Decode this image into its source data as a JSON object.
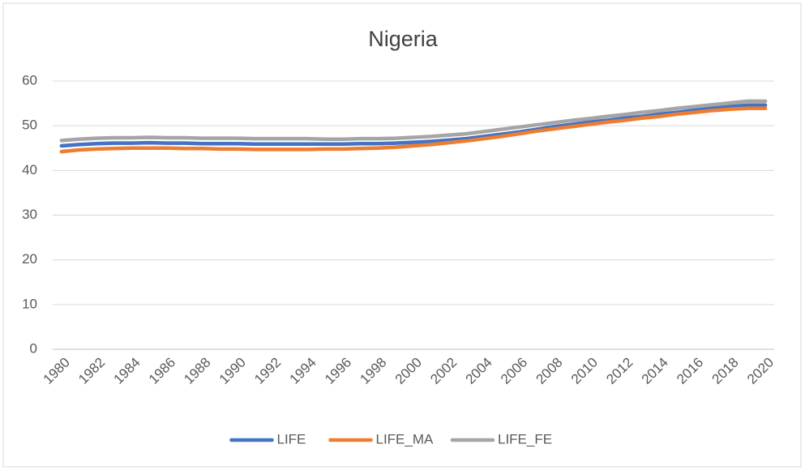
{
  "chart_data": {
    "type": "line",
    "title": "Nigeria",
    "categories": [
      "1980",
      null,
      "1982",
      null,
      "1984",
      null,
      "1986",
      null,
      "1988",
      null,
      "1990",
      null,
      "1992",
      null,
      "1994",
      null,
      "1996",
      null,
      "1998",
      null,
      "2000",
      null,
      "2002",
      null,
      "2004",
      null,
      "2006",
      null,
      "2008",
      null,
      "2010",
      null,
      "2012",
      null,
      "2014",
      null,
      "2016",
      null,
      "2018",
      null,
      "2020"
    ],
    "series": [
      {
        "name": "LIFE",
        "color": "#4472c4",
        "values": [
          45.5,
          45.8,
          46.0,
          46.1,
          46.1,
          46.2,
          46.1,
          46.1,
          46.0,
          46.0,
          46.0,
          45.9,
          45.9,
          45.9,
          45.9,
          45.9,
          45.9,
          46.0,
          46.0,
          46.1,
          46.3,
          46.5,
          46.8,
          47.1,
          47.6,
          48.1,
          48.6,
          49.2,
          49.8,
          50.3,
          50.8,
          51.2,
          51.7,
          52.1,
          52.6,
          53.0,
          53.5,
          53.9,
          54.3,
          54.6,
          54.6
        ]
      },
      {
        "name": "LIFE_MA",
        "color": "#ed7d31",
        "values": [
          44.2,
          44.6,
          44.8,
          44.9,
          45.0,
          45.0,
          45.0,
          44.9,
          44.9,
          44.8,
          44.8,
          44.7,
          44.7,
          44.7,
          44.7,
          44.8,
          44.8,
          44.9,
          45.0,
          45.2,
          45.5,
          45.8,
          46.2,
          46.6,
          47.1,
          47.6,
          48.2,
          48.8,
          49.3,
          49.8,
          50.3,
          50.8,
          51.2,
          51.7,
          52.1,
          52.6,
          53.0,
          53.4,
          53.7,
          53.9,
          53.9
        ]
      },
      {
        "name": "LIFE_FE",
        "color": "#a5a5a5",
        "values": [
          46.7,
          47.0,
          47.2,
          47.3,
          47.3,
          47.4,
          47.3,
          47.3,
          47.2,
          47.2,
          47.2,
          47.1,
          47.1,
          47.1,
          47.1,
          47.0,
          47.0,
          47.1,
          47.1,
          47.2,
          47.4,
          47.6,
          47.9,
          48.2,
          48.7,
          49.2,
          49.7,
          50.2,
          50.7,
          51.2,
          51.6,
          52.1,
          52.5,
          53.0,
          53.4,
          53.9,
          54.3,
          54.7,
          55.1,
          55.5,
          55.5
        ]
      }
    ],
    "ylim": [
      0,
      60
    ],
    "yticks": [
      0,
      10,
      20,
      30,
      40,
      50,
      60
    ],
    "grid": true,
    "legend": "bottom"
  }
}
